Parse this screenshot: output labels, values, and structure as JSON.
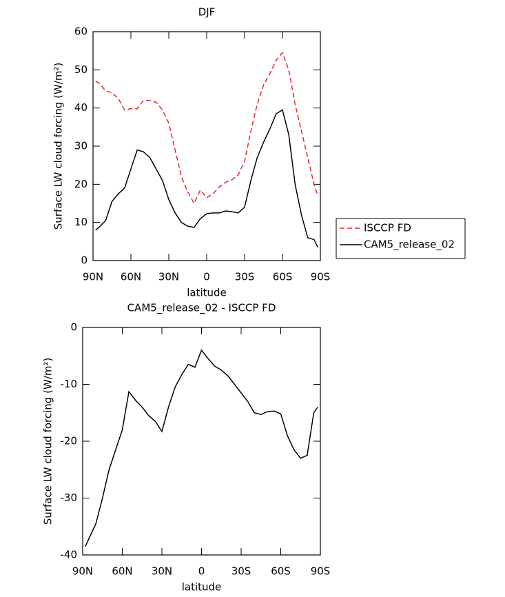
{
  "chart_data": [
    {
      "type": "line",
      "title": "DJF",
      "xlabel": "latitude",
      "ylabel": "Surface LW cloud forcing (W/m²)",
      "x": [
        88,
        85,
        80,
        75,
        70,
        65,
        60,
        55,
        50,
        45,
        40,
        35,
        30,
        25,
        20,
        15,
        10,
        5,
        0,
        -5,
        -10,
        -15,
        -20,
        -25,
        -30,
        -35,
        -40,
        -45,
        -50,
        -55,
        -60,
        -65,
        -70,
        -75,
        -80,
        -85,
        -88
      ],
      "xlim": [
        90,
        -90
      ],
      "xticks": [
        {
          "value": 90,
          "label": "90N"
        },
        {
          "value": 60,
          "label": "60N"
        },
        {
          "value": 30,
          "label": "30N"
        },
        0,
        {
          "value": -30,
          "label": "30S"
        },
        {
          "value": -60,
          "label": "60S"
        },
        {
          "value": -90,
          "label": "90S"
        }
      ],
      "ylim": [
        0,
        60
      ],
      "yticks": [
        0,
        10,
        20,
        30,
        40,
        50,
        60
      ],
      "legend": "right",
      "series": [
        {
          "name": "ISCCP FD",
          "color": "#e8242a",
          "line_style": "dashed",
          "values": [
            47,
            46.5,
            44.5,
            44,
            42.5,
            39.5,
            39.8,
            39.8,
            42,
            42,
            41.5,
            39.5,
            36,
            29,
            22,
            18,
            15,
            18.5,
            16.5,
            17.5,
            19.3,
            20.5,
            21.2,
            22.5,
            26,
            34,
            41,
            46,
            49,
            52.5,
            54.5,
            50,
            41,
            34,
            27,
            20,
            17
          ]
        },
        {
          "name": "CAM5_release_02",
          "color": "#000000",
          "line_style": "solid",
          "values": [
            8,
            8.8,
            10.5,
            15.5,
            17.5,
            19,
            24,
            29,
            28.5,
            27,
            24,
            21,
            16,
            12.5,
            10,
            9,
            8.7,
            11,
            12.3,
            12.5,
            12.5,
            13,
            12.8,
            12.5,
            14,
            21,
            27,
            31,
            34.5,
            38.5,
            39.5,
            33,
            20,
            12,
            6,
            5.5,
            3.5
          ]
        }
      ]
    },
    {
      "type": "line",
      "title": "CAM5_release_02 - ISCCP FD",
      "xlabel": "latitude",
      "ylabel": "Surface LW cloud forcing (W/m²)",
      "x": [
        88,
        85,
        80,
        75,
        70,
        65,
        60,
        55,
        50,
        45,
        40,
        35,
        30,
        25,
        20,
        15,
        10,
        5,
        0,
        -5,
        -10,
        -15,
        -20,
        -25,
        -30,
        -35,
        -40,
        -45,
        -50,
        -55,
        -60,
        -65,
        -70,
        -75,
        -80,
        -85,
        -88
      ],
      "xlim": [
        90,
        -90
      ],
      "xticks": [
        {
          "value": 90,
          "label": "90N"
        },
        {
          "value": 60,
          "label": "60N"
        },
        {
          "value": 30,
          "label": "30N"
        },
        0,
        {
          "value": -30,
          "label": "30S"
        },
        {
          "value": -60,
          "label": "60S"
        },
        {
          "value": -90,
          "label": "90S"
        }
      ],
      "ylim": [
        -40,
        0
      ],
      "yticks": [
        -40,
        -30,
        -20,
        -10,
        0
      ],
      "series": [
        {
          "color": "#000000",
          "line_style": "solid",
          "values": [
            -38.5,
            -37,
            -34.5,
            -30,
            -25,
            -21.5,
            -18,
            -11.3,
            -12.8,
            -14,
            -15.5,
            -16.5,
            -18.3,
            -14,
            -10.5,
            -8.3,
            -6.5,
            -7,
            -4,
            -5.5,
            -6.8,
            -7.5,
            -8.5,
            -10,
            -11.5,
            -13,
            -15,
            -15.3,
            -14.8,
            -14.7,
            -15.2,
            -19,
            -21.5,
            -23,
            -22.5,
            -15,
            -14
          ]
        }
      ]
    }
  ]
}
